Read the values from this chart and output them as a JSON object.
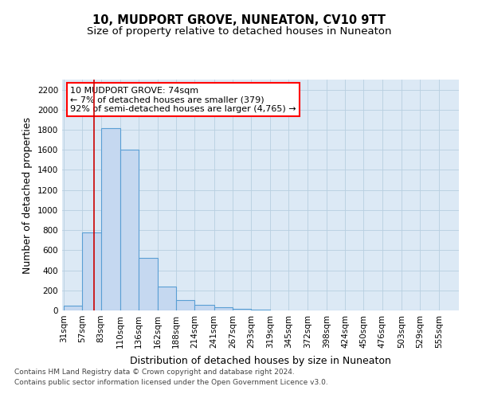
{
  "title": "10, MUDPORT GROVE, NUNEATON, CV10 9TT",
  "subtitle": "Size of property relative to detached houses in Nuneaton",
  "xlabel": "Distribution of detached houses by size in Nuneaton",
  "ylabel": "Number of detached properties",
  "bar_edges": [
    31,
    57,
    83,
    110,
    136,
    162,
    188,
    214,
    241,
    267,
    293,
    319,
    345,
    372,
    398,
    424,
    450,
    476,
    503,
    529,
    555
  ],
  "bar_heights": [
    50,
    780,
    1820,
    1600,
    520,
    240,
    105,
    55,
    35,
    15,
    5,
    2,
    1,
    0,
    0,
    0,
    0,
    0,
    0,
    0
  ],
  "bar_color": "#c5d8f0",
  "bar_edge_color": "#5a9fd4",
  "bar_edge_width": 0.8,
  "grid_color": "#b8cfe0",
  "bg_color": "#dce9f5",
  "ylim": [
    0,
    2300
  ],
  "yticks": [
    0,
    200,
    400,
    600,
    800,
    1000,
    1200,
    1400,
    1600,
    1800,
    2000,
    2200
  ],
  "property_size": 74,
  "vline_color": "#cc0000",
  "annotation_text": "10 MUDPORT GROVE: 74sqm\n← 7% of detached houses are smaller (379)\n92% of semi-detached houses are larger (4,765) →",
  "footer_line1": "Contains HM Land Registry data © Crown copyright and database right 2024.",
  "footer_line2": "Contains public sector information licensed under the Open Government Licence v3.0.",
  "title_fontsize": 10.5,
  "subtitle_fontsize": 9.5,
  "tick_fontsize": 7.5,
  "ylabel_fontsize": 9,
  "xlabel_fontsize": 9,
  "annotation_fontsize": 8,
  "footer_fontsize": 6.5
}
